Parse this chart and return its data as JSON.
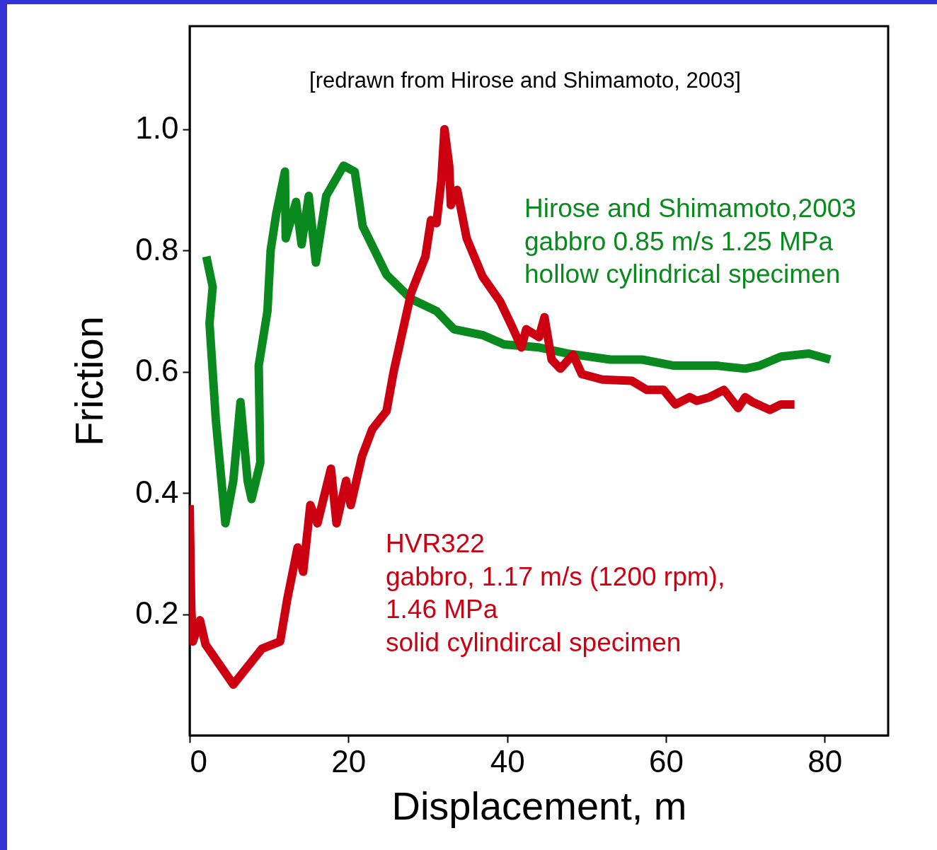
{
  "chart_data": {
    "type": "line",
    "xlabel": "Displacement, m",
    "ylabel": "Friction",
    "xlim": [
      0,
      88
    ],
    "ylim": [
      0,
      1.17
    ],
    "xticks": [
      0,
      20,
      40,
      60,
      80
    ],
    "yticks": [
      {
        "value": 0.2,
        "label": "0.2"
      },
      {
        "value": 0.4,
        "label": "0.4"
      },
      {
        "value": 0.6,
        "label": "0.6"
      },
      {
        "value": 0.8,
        "label": "0.8"
      },
      {
        "value": 1,
        "label": "1.0"
      }
    ],
    "grid": false,
    "marker": "none",
    "line_style": "solid",
    "annotations": [
      "[redrawn from Hirose and Shimamoto, 2003]"
    ],
    "series": [
      {
        "name": "Hirose and Shimamoto,2003\ngabbro 0.85 m/s 1.25 MPa\nhollow cylindrical specimen",
        "color": "#0a8a1e",
        "x": [
          2.1,
          2.9,
          2.5,
          3.3,
          4.5,
          5.5,
          6.4,
          7.3,
          7.8,
          8.9,
          8.7,
          9.8,
          10.2,
          10.9,
          12.0,
          12.1,
          13.4,
          14.1,
          15.0,
          15.9,
          17.2,
          19.4,
          20.8,
          21.8,
          24.8,
          27.9,
          31.1,
          33.3,
          37,
          39.6,
          44,
          47.6,
          53,
          57,
          61,
          66.4,
          70,
          71.8,
          74.5,
          78,
          80.7
        ],
        "values": [
          0.79,
          0.74,
          0.68,
          0.52,
          0.35,
          0.42,
          0.55,
          0.42,
          0.39,
          0.45,
          0.61,
          0.7,
          0.8,
          0.86,
          0.93,
          0.82,
          0.88,
          0.81,
          0.89,
          0.78,
          0.89,
          0.94,
          0.93,
          0.84,
          0.76,
          0.72,
          0.7,
          0.67,
          0.66,
          0.645,
          0.64,
          0.63,
          0.62,
          0.62,
          0.61,
          0.61,
          0.605,
          0.61,
          0.625,
          0.63,
          0.62
        ]
      },
      {
        "name": "HVR322\ngabbro, 1.17 m/s (1200 rpm),\n1.46 MPa\nsolid cylindircal specimen",
        "color": "#cc0011",
        "x": [
          0,
          0.2,
          0.4,
          1.3,
          2,
          5.5,
          9.1,
          11.4,
          12.3,
          13.6,
          14.3,
          15.2,
          16.1,
          17.8,
          18.5,
          19.7,
          20.3,
          21.7,
          23,
          24.8,
          25.7,
          27.9,
          29.7,
          30.4,
          31.1,
          31.7,
          32.1,
          32.7,
          32.9,
          33.7,
          34.9,
          36.9,
          39.1,
          40.6,
          41.8,
          42.4,
          44,
          44.7,
          45.6,
          46.7,
          48.3,
          49.4,
          52,
          55.7,
          57.6,
          59.7,
          61.2,
          63,
          63.9,
          65.5,
          67.3,
          69.1,
          70,
          70.9,
          73.1,
          74.5,
          76.2
        ],
        "values": [
          0.38,
          0.21,
          0.155,
          0.19,
          0.15,
          0.084,
          0.143,
          0.155,
          0.225,
          0.31,
          0.27,
          0.38,
          0.35,
          0.44,
          0.35,
          0.42,
          0.38,
          0.46,
          0.505,
          0.535,
          0.6,
          0.73,
          0.79,
          0.85,
          0.845,
          0.915,
          1.0,
          0.94,
          0.875,
          0.9,
          0.82,
          0.757,
          0.716,
          0.675,
          0.64,
          0.67,
          0.657,
          0.69,
          0.62,
          0.605,
          0.628,
          0.596,
          0.587,
          0.585,
          0.57,
          0.57,
          0.546,
          0.558,
          0.552,
          0.558,
          0.57,
          0.54,
          0.558,
          0.55,
          0.537,
          0.546,
          0.546
        ]
      }
    ]
  }
}
